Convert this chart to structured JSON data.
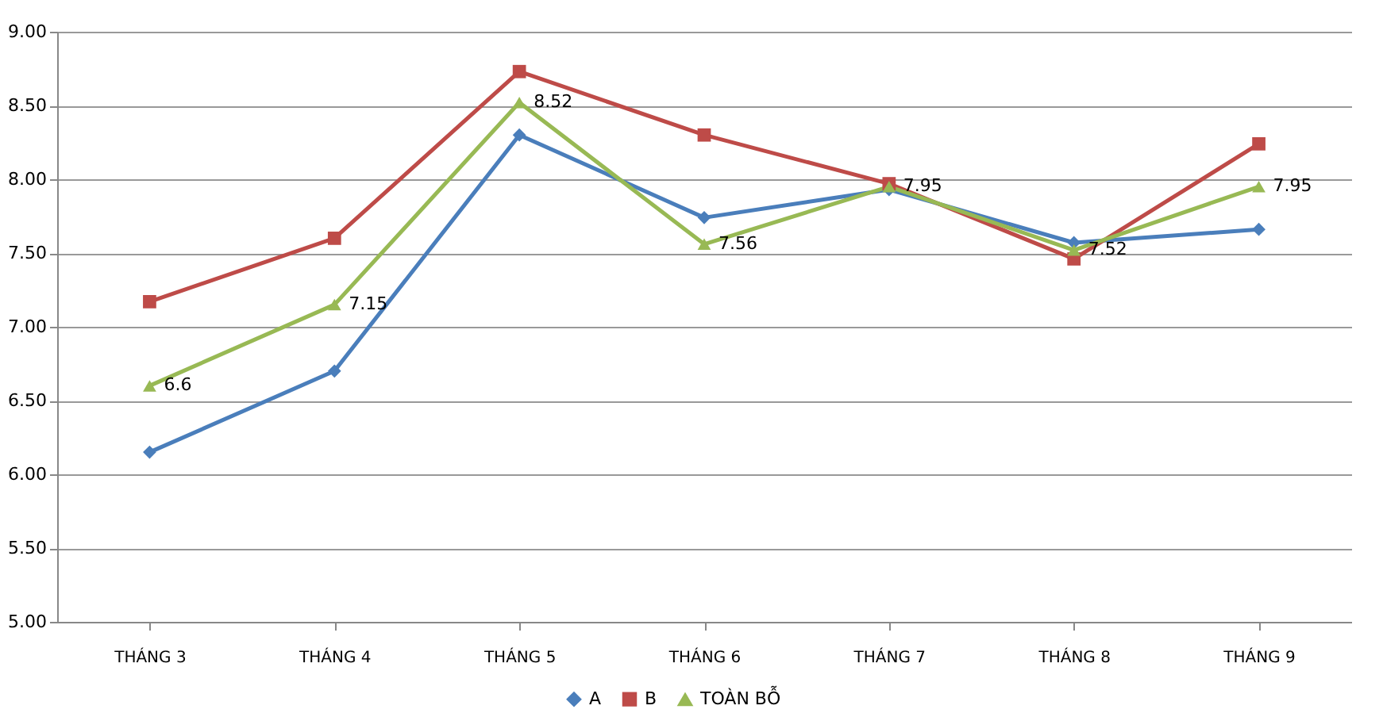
{
  "chart_data": {
    "type": "line",
    "categories": [
      "THÁNG 3",
      "THÁNG 4",
      "THÁNG 5",
      "THÁNG 6",
      "THÁNG 7",
      "THÁNG 8",
      "THÁNG 9"
    ],
    "series": [
      {
        "name": "A",
        "color": "#4a7ebb",
        "marker": "diamond",
        "values": [
          6.15,
          6.7,
          8.3,
          7.74,
          7.93,
          7.57,
          7.66
        ]
      },
      {
        "name": "B",
        "color": "#be4b48",
        "marker": "square",
        "values": [
          7.17,
          7.6,
          8.73,
          8.3,
          7.97,
          7.46,
          8.24
        ]
      },
      {
        "name": "TOÀN BỖ",
        "color": "#98b954",
        "marker": "triangle",
        "values": [
          6.6,
          7.15,
          8.52,
          7.56,
          7.95,
          7.52,
          7.95
        ],
        "value_labels": [
          "6.6",
          "7.15",
          "8.52",
          "7.56",
          "7.95",
          "7.52",
          "7.95"
        ]
      }
    ],
    "ylim": [
      5,
      9
    ],
    "yticks": [
      {
        "value": 5,
        "label": "5.00"
      },
      {
        "value": 5.5,
        "label": "5.50"
      },
      {
        "value": 6,
        "label": "6.00"
      },
      {
        "value": 6.5,
        "label": "6.50"
      },
      {
        "value": 7,
        "label": "7.00"
      },
      {
        "value": 7.5,
        "label": "7.50"
      },
      {
        "value": 8,
        "label": "8.00"
      },
      {
        "value": 8.5,
        "label": "8.50"
      },
      {
        "value": 9,
        "label": "9.00"
      }
    ],
    "grid": "y",
    "legend": "bottom"
  }
}
